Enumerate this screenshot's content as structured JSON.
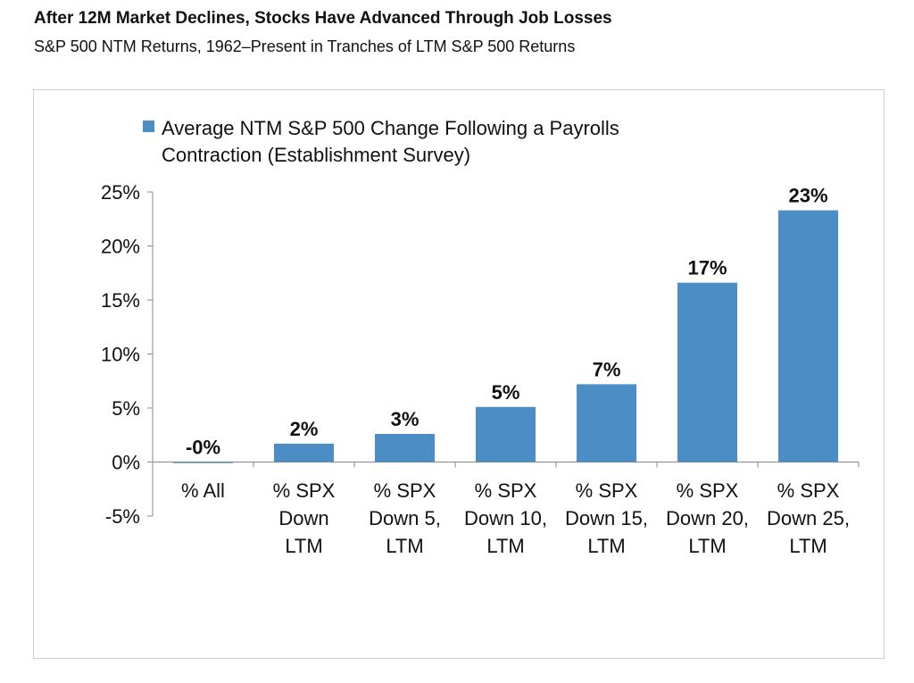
{
  "header": {
    "title": "After 12M Market Declines, Stocks Have Advanced Through Job Losses",
    "subtitle": "S&P 500 NTM Returns, 1962–Present in Tranches of LTM S&P 500 Returns"
  },
  "chart_data": {
    "type": "bar",
    "legend": {
      "lines": [
        "Average NTM S&P 500 Change Following a Payrolls",
        "Contraction (Establishment Survey)"
      ],
      "placement": "top-left",
      "color": "#4a8ec5"
    },
    "categories": [
      [
        "% All"
      ],
      [
        "% SPX",
        "Down",
        "LTM"
      ],
      [
        "% SPX",
        "Down 5,",
        "LTM"
      ],
      [
        "% SPX",
        "Down 10,",
        "LTM"
      ],
      [
        "% SPX",
        "Down 15,",
        "LTM"
      ],
      [
        "% SPX",
        "Down 20,",
        "LTM"
      ],
      [
        "% SPX",
        "Down 25,",
        "LTM"
      ]
    ],
    "values": [
      -0.1,
      1.7,
      2.6,
      5.1,
      7.2,
      16.6,
      23.3
    ],
    "data_labels": [
      "-0%",
      "2%",
      "3%",
      "5%",
      "7%",
      "17%",
      "23%"
    ],
    "y_ticks": [
      "25%",
      "20%",
      "15%",
      "10%",
      "5%",
      "0%",
      "-5%"
    ],
    "y_tick_values": [
      25,
      20,
      15,
      10,
      5,
      0,
      -5
    ],
    "ylim": [
      -5,
      25
    ],
    "grid": false,
    "bar_color": "#4a8ec5"
  }
}
